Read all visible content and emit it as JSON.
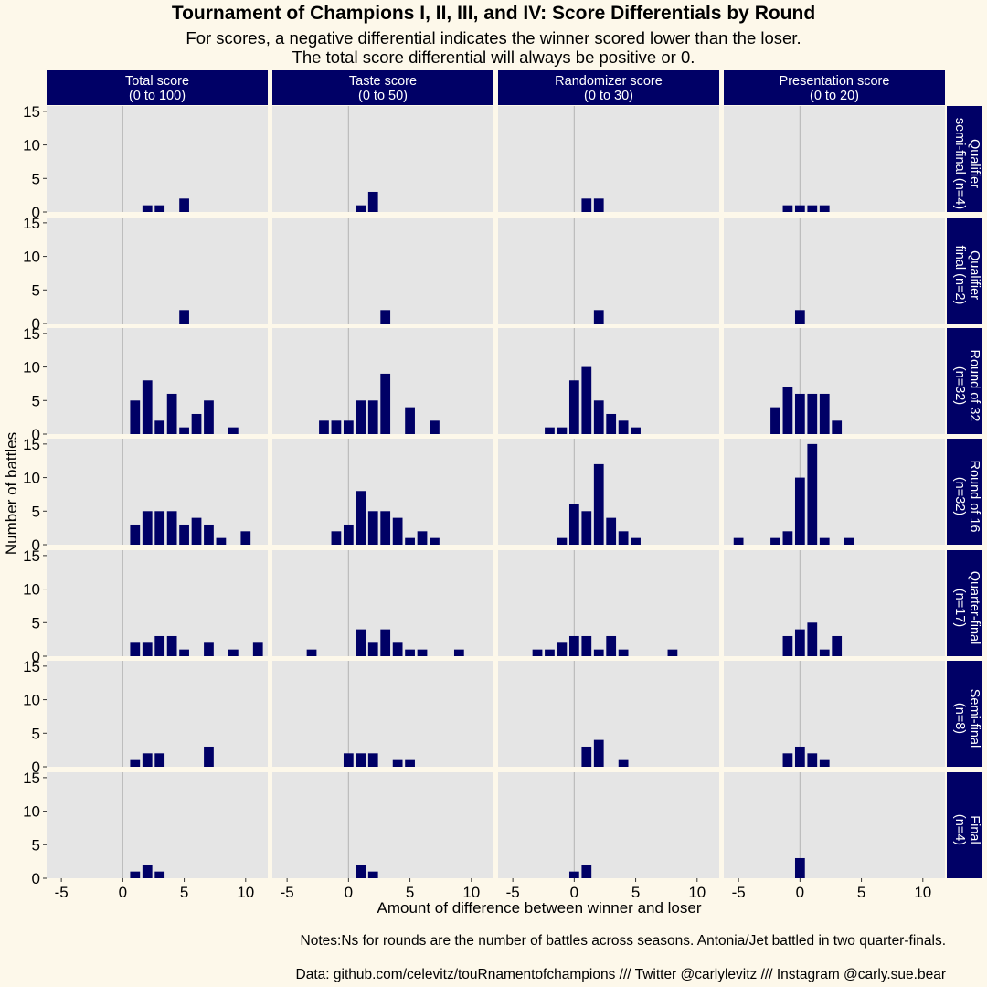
{
  "title": "Tournament of Champions I, II, III, and IV: Score Differentials by Round",
  "subtitle_line1": "For scores, a negative differential indicates the winner scored lower than the loser.",
  "subtitle_line2": "The total score differential will always be positive or 0.",
  "note": "Notes:Ns for rounds are the number of battles across seasons. Antonia/Jet battled in two quarter-finals.",
  "source": "Data: github.com/celevitz/touRnamentofchampions /// Twitter @carlylevitz /// Instagram @carly.sue.bear",
  "colors": {
    "bar": "#000066",
    "strip": "#000066",
    "panel": "#e5e5e5",
    "background": "#fdf8ea",
    "zero_line": "#bbbbbb"
  },
  "chart_data": {
    "type": "bar",
    "xlabel": "Amount of difference between winner and loser",
    "ylabel": "Number of battles",
    "xlim": [
      -6.2,
      11.8
    ],
    "ylim": [
      0,
      15.8
    ],
    "xticks": [
      -5,
      0,
      5,
      10
    ],
    "yticks": [
      0,
      5,
      10,
      15
    ],
    "grid": false,
    "columns": [
      {
        "label_line1": "Total score",
        "label_line2": "(0 to 100)"
      },
      {
        "label_line1": "Taste score",
        "label_line2": "(0 to 50)"
      },
      {
        "label_line1": "Randomizer score",
        "label_line2": "(0 to 30)"
      },
      {
        "label_line1": "Presentation score",
        "label_line2": "(0 to 20)"
      }
    ],
    "rows": [
      {
        "label_line1": "Qualifier",
        "label_line2": "semi-final (n=4)"
      },
      {
        "label_line1": "Qualifier",
        "label_line2": "final (n=2)"
      },
      {
        "label_line1": "Round of 32",
        "label_line2": "(n=32)"
      },
      {
        "label_line1": "Round of 16",
        "label_line2": "(n=32)"
      },
      {
        "label_line1": "Quarter-final",
        "label_line2": "(n=17)"
      },
      {
        "label_line1": "Semi-final",
        "label_line2": "(n=8)"
      },
      {
        "label_line1": "Final",
        "label_line2": "(n=4)"
      }
    ],
    "panels": [
      [
        [
          [
            2,
            1
          ],
          [
            3,
            1
          ],
          [
            5,
            2
          ]
        ],
        [
          [
            1,
            1
          ],
          [
            2,
            3
          ]
        ],
        [
          [
            1,
            2
          ],
          [
            2,
            2
          ]
        ],
        [
          [
            -1,
            1
          ],
          [
            0,
            1
          ],
          [
            1,
            1
          ],
          [
            2,
            1
          ]
        ]
      ],
      [
        [
          [
            5,
            2
          ]
        ],
        [
          [
            3,
            2
          ]
        ],
        [
          [
            2,
            2
          ]
        ],
        [
          [
            0,
            2
          ]
        ]
      ],
      [
        [
          [
            1,
            5
          ],
          [
            2,
            8
          ],
          [
            3,
            2
          ],
          [
            4,
            6
          ],
          [
            5,
            1
          ],
          [
            6,
            3
          ],
          [
            7,
            5
          ],
          [
            9,
            1
          ]
        ],
        [
          [
            -2,
            2
          ],
          [
            -1,
            2
          ],
          [
            0,
            2
          ],
          [
            1,
            5
          ],
          [
            2,
            5
          ],
          [
            3,
            9
          ],
          [
            5,
            4
          ],
          [
            7,
            2
          ]
        ],
        [
          [
            -2,
            1
          ],
          [
            -1,
            1
          ],
          [
            0,
            8
          ],
          [
            1,
            10
          ],
          [
            2,
            5
          ],
          [
            3,
            3
          ],
          [
            4,
            2
          ],
          [
            5,
            1
          ]
        ],
        [
          [
            -2,
            4
          ],
          [
            -1,
            7
          ],
          [
            0,
            6
          ],
          [
            1,
            6
          ],
          [
            2,
            6
          ],
          [
            3,
            2
          ]
        ]
      ],
      [
        [
          [
            1,
            3
          ],
          [
            2,
            5
          ],
          [
            3,
            5
          ],
          [
            4,
            5
          ],
          [
            5,
            3
          ],
          [
            6,
            4
          ],
          [
            7,
            3
          ],
          [
            8,
            1
          ],
          [
            10,
            2
          ]
        ],
        [
          [
            -1,
            2
          ],
          [
            0,
            3
          ],
          [
            1,
            8
          ],
          [
            2,
            5
          ],
          [
            3,
            5
          ],
          [
            4,
            4
          ],
          [
            5,
            1
          ],
          [
            6,
            2
          ],
          [
            7,
            1
          ]
        ],
        [
          [
            -1,
            1
          ],
          [
            0,
            6
          ],
          [
            1,
            5
          ],
          [
            2,
            12
          ],
          [
            3,
            4
          ],
          [
            4,
            2
          ],
          [
            5,
            1
          ]
        ],
        [
          [
            -5,
            1
          ],
          [
            -2,
            1
          ],
          [
            -1,
            2
          ],
          [
            0,
            10
          ],
          [
            1,
            15
          ],
          [
            2,
            1
          ],
          [
            4,
            1
          ]
        ]
      ],
      [
        [
          [
            1,
            2
          ],
          [
            2,
            2
          ],
          [
            3,
            3
          ],
          [
            4,
            3
          ],
          [
            5,
            1
          ],
          [
            7,
            2
          ],
          [
            9,
            1
          ],
          [
            11,
            2
          ]
        ],
        [
          [
            -3,
            1
          ],
          [
            1,
            4
          ],
          [
            2,
            2
          ],
          [
            3,
            4
          ],
          [
            4,
            2
          ],
          [
            5,
            1
          ],
          [
            6,
            1
          ],
          [
            9,
            1
          ]
        ],
        [
          [
            -3,
            1
          ],
          [
            -2,
            1
          ],
          [
            -1,
            2
          ],
          [
            0,
            3
          ],
          [
            1,
            3
          ],
          [
            2,
            1
          ],
          [
            3,
            3
          ],
          [
            4,
            1
          ],
          [
            8,
            1
          ]
        ],
        [
          [
            -1,
            3
          ],
          [
            0,
            4
          ],
          [
            1,
            5
          ],
          [
            2,
            1
          ],
          [
            3,
            3
          ]
        ]
      ],
      [
        [
          [
            1,
            1
          ],
          [
            2,
            2
          ],
          [
            3,
            2
          ],
          [
            7,
            3
          ]
        ],
        [
          [
            0,
            2
          ],
          [
            1,
            2
          ],
          [
            2,
            2
          ],
          [
            4,
            1
          ],
          [
            5,
            1
          ]
        ],
        [
          [
            1,
            3
          ],
          [
            2,
            4
          ],
          [
            4,
            1
          ]
        ],
        [
          [
            -1,
            2
          ],
          [
            0,
            3
          ],
          [
            1,
            2
          ],
          [
            2,
            1
          ]
        ]
      ],
      [
        [
          [
            1,
            1
          ],
          [
            2,
            2
          ],
          [
            3,
            1
          ]
        ],
        [
          [
            1,
            2
          ],
          [
            2,
            1
          ]
        ],
        [
          [
            0,
            1
          ],
          [
            1,
            2
          ]
        ],
        [
          [
            0,
            3
          ]
        ]
      ]
    ]
  }
}
